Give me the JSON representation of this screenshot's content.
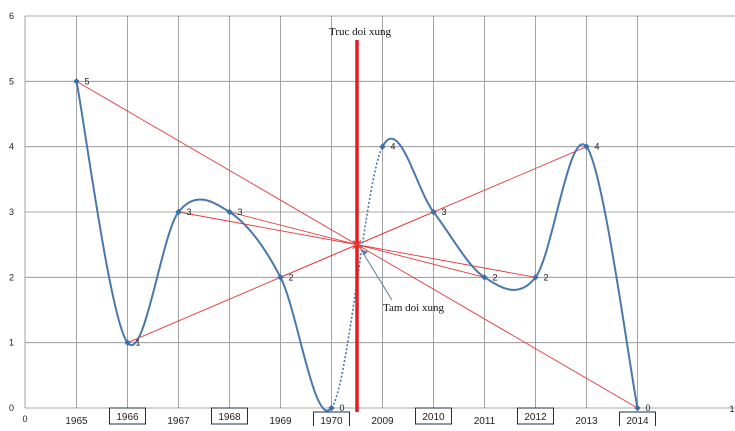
{
  "chart_data": {
    "type": "line",
    "x_axis": {
      "min": 0,
      "max": 1,
      "edge_labels": [
        "0",
        "1"
      ],
      "category_labels": [
        "1965",
        "1966",
        "1967",
        "1968",
        "1969",
        "1970",
        "2009",
        "2010",
        "2011",
        "2012",
        "2013",
        "2014"
      ],
      "boxed_labels": [
        "1966",
        "1968",
        "1970",
        "2010",
        "2012",
        "2014"
      ]
    },
    "y_axis": {
      "min": 0,
      "max": 6,
      "ticks": [
        "0",
        "1",
        "2",
        "3",
        "4",
        "5",
        "6"
      ]
    },
    "grid": true,
    "series": [
      {
        "points": [
          {
            "category": "1965",
            "value": 5,
            "label": "5"
          },
          {
            "category": "1966",
            "value": 1,
            "label": "1"
          },
          {
            "category": "1967",
            "value": 3,
            "label": "3"
          },
          {
            "category": "1968",
            "value": 3,
            "label": "3"
          },
          {
            "category": "1969",
            "value": 2,
            "label": "2"
          },
          {
            "category": "1970",
            "value": 0,
            "label": "0"
          },
          {
            "category": "2009",
            "value": 4,
            "label": "4"
          },
          {
            "category": "2010",
            "value": 3,
            "label": "3"
          },
          {
            "category": "2011",
            "value": 2,
            "label": "2"
          },
          {
            "category": "2012",
            "value": 2,
            "label": "2"
          },
          {
            "category": "2013",
            "value": 4,
            "label": "4"
          },
          {
            "category": "2014",
            "value": 0,
            "label": "0"
          }
        ],
        "dotted_segment": [
          "1970",
          "2009"
        ],
        "color": "#4a78ab"
      }
    ],
    "symmetry": {
      "axis_label": "Truc  doi xung",
      "center_label": "Tam doi xung",
      "center_value": 2.5,
      "pairs": [
        [
          "1965",
          "2014"
        ],
        [
          "1966",
          "2013"
        ],
        [
          "1967",
          "2012"
        ],
        [
          "1968",
          "2011"
        ],
        [
          "1969",
          "2010"
        ]
      ],
      "axis_color": "#e02020",
      "line_color": "#e43a3a"
    },
    "colors": {
      "grid": "#8c8c8c",
      "marker": "#3d6fa6"
    }
  }
}
